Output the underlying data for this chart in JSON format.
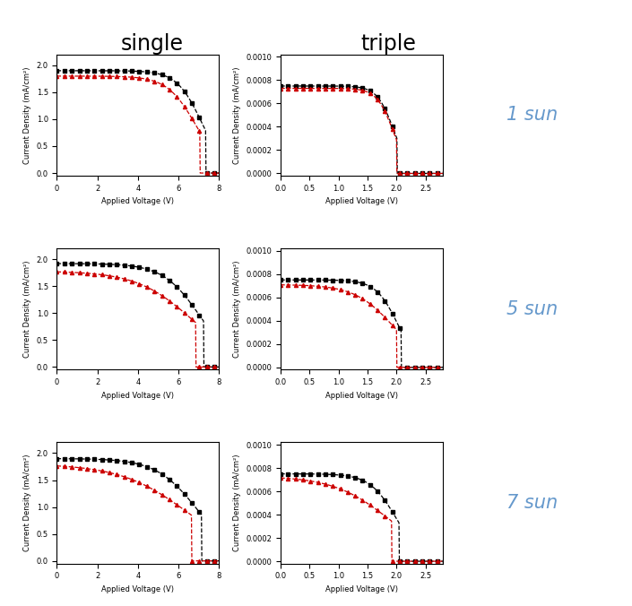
{
  "title_single": "single",
  "title_triple": "triple",
  "sun_labels": [
    "1 sun",
    "5 sun",
    "7 sun"
  ],
  "sun_label_color": "#6699cc",
  "single_xlim": [
    0,
    8
  ],
  "single_ylim": [
    -0.05,
    2.2
  ],
  "single_xticks": [
    0,
    2,
    4,
    6,
    8
  ],
  "single_yticks": [
    0.0,
    0.5,
    1.0,
    1.5,
    2.0
  ],
  "triple_xlim": [
    0.0,
    2.8
  ],
  "triple_ylim": [
    -2e-05,
    0.00102
  ],
  "triple_xticks": [
    0.0,
    0.5,
    1.0,
    1.5,
    2.0,
    2.5
  ],
  "triple_yticks": [
    0.0,
    0.0002,
    0.0004,
    0.0006,
    0.0008,
    0.001
  ],
  "xlabel": "Applied Voltage (V)",
  "ylabel_single": "Current Density (mA/cm²)",
  "ylabel_triple": "Current Density (mA/cm²)",
  "black_color": "#000000",
  "red_color": "#cc0000",
  "markersize": 3,
  "single_curves": [
    {
      "black_Voc": 7.35,
      "black_Isc": 1.9,
      "black_n": 12,
      "red_Voc": 7.05,
      "red_Isc": 1.8,
      "red_n": 10
    },
    {
      "black_Voc": 7.25,
      "black_Isc": 1.92,
      "black_n": 8,
      "red_Voc": 6.85,
      "red_Isc": 1.78,
      "red_n": 5
    },
    {
      "black_Voc": 7.15,
      "black_Isc": 1.9,
      "black_n": 7,
      "red_Voc": 6.65,
      "red_Isc": 1.8,
      "red_n": 4
    }
  ],
  "triple_curves": [
    {
      "black_Voc": 2.01,
      "black_Isc": 0.00075,
      "black_n": 14,
      "red_Voc": 2.0,
      "red_Isc": 0.00073,
      "red_n": 14
    },
    {
      "black_Voc": 2.08,
      "black_Isc": 0.00075,
      "black_n": 11,
      "red_Voc": 2.0,
      "red_Isc": 0.00071,
      "red_n": 6
    },
    {
      "black_Voc": 2.05,
      "black_Isc": 0.00075,
      "black_n": 9,
      "red_Voc": 1.92,
      "red_Isc": 0.00073,
      "red_n": 4
    }
  ]
}
